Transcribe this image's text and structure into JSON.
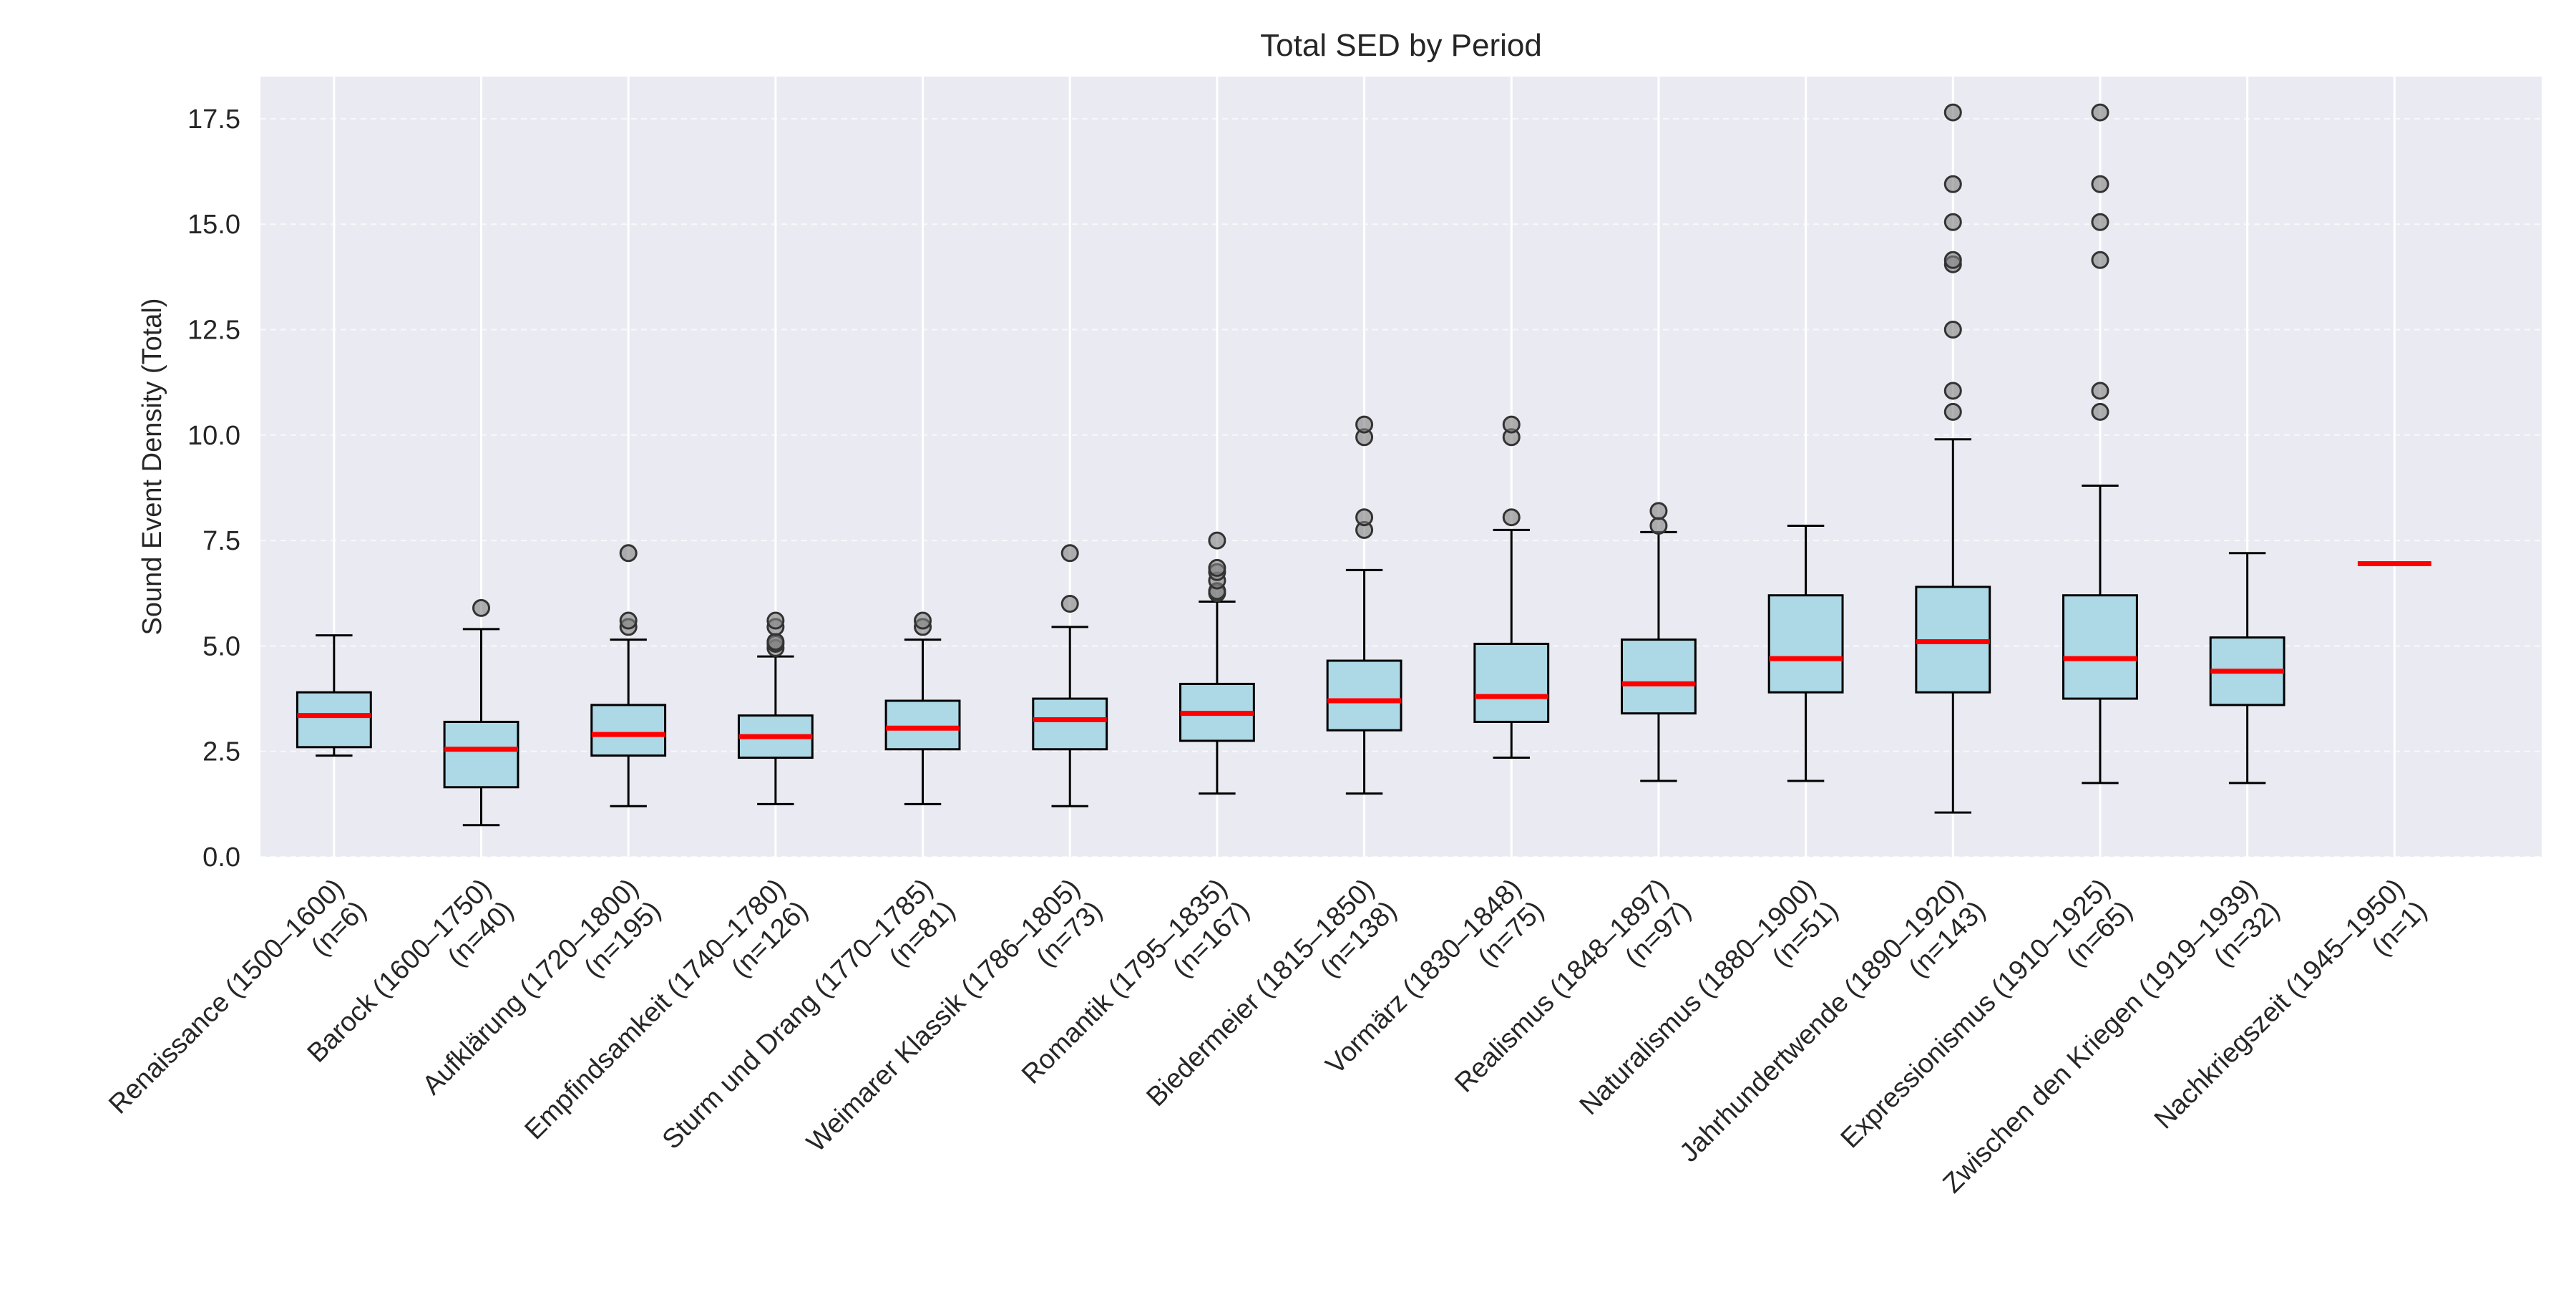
{
  "chart_data": {
    "type": "boxplot",
    "title": "Total SED by Period",
    "xlabel": "",
    "ylabel": "Sound Event Density (Total)",
    "ylim": [
      0,
      18.5
    ],
    "yticks": [
      "0.0",
      "2.5",
      "5.0",
      "7.5",
      "10.0",
      "12.5",
      "15.0",
      "17.5"
    ],
    "grid": true,
    "colors": {
      "background": "#eaeaf2",
      "grid": "#ffffff",
      "box_fill": "#add8e6",
      "box_edge": "#000000",
      "median": "#ff0000",
      "outlier_fill": "#808080"
    },
    "categories": [
      {
        "name": "Renaissance (1500–1600)",
        "n": "(n=6)",
        "q1": 2.6,
        "median": 3.35,
        "q3": 3.9,
        "whisker_low": 2.4,
        "whisker_high": 5.25,
        "outliers": []
      },
      {
        "name": "Barock (1600–1750)",
        "n": "(n=40)",
        "q1": 1.65,
        "median": 2.55,
        "q3": 3.2,
        "whisker_low": 0.75,
        "whisker_high": 5.4,
        "outliers": [
          5.9
        ]
      },
      {
        "name": "Aufklärung (1720–1800)",
        "n": "(n=195)",
        "q1": 2.4,
        "median": 2.9,
        "q3": 3.6,
        "whisker_low": 1.2,
        "whisker_high": 5.15,
        "outliers": [
          5.45,
          5.6,
          7.2
        ]
      },
      {
        "name": "Empfindsamkeit (1740–1780)",
        "n": "(n=126)",
        "q1": 2.35,
        "median": 2.85,
        "q3": 3.35,
        "whisker_low": 1.25,
        "whisker_high": 4.75,
        "outliers": [
          4.95,
          5.05,
          5.1,
          5.45,
          5.6
        ]
      },
      {
        "name": "Sturm und Drang (1770–1785)",
        "n": "(n=81)",
        "q1": 2.55,
        "median": 3.05,
        "q3": 3.7,
        "whisker_low": 1.25,
        "whisker_high": 5.15,
        "outliers": [
          5.45,
          5.6
        ]
      },
      {
        "name": "Weimarer Klassik (1786–1805)",
        "n": "(n=73)",
        "q1": 2.55,
        "median": 3.25,
        "q3": 3.75,
        "whisker_low": 1.2,
        "whisker_high": 5.45,
        "outliers": [
          6.0,
          7.2
        ]
      },
      {
        "name": "Romantik (1795–1835)",
        "n": "(n=167)",
        "q1": 2.75,
        "median": 3.4,
        "q3": 4.1,
        "whisker_low": 1.5,
        "whisker_high": 6.05,
        "outliers": [
          6.25,
          6.3,
          6.55,
          6.75,
          6.85,
          7.5
        ]
      },
      {
        "name": "Biedermeier (1815–1850)",
        "n": "(n=138)",
        "q1": 3.0,
        "median": 3.7,
        "q3": 4.65,
        "whisker_low": 1.5,
        "whisker_high": 6.8,
        "outliers": [
          7.75,
          8.05,
          9.95,
          10.25
        ]
      },
      {
        "name": "Vormärz (1830–1848)",
        "n": "(n=75)",
        "q1": 3.2,
        "median": 3.8,
        "q3": 5.05,
        "whisker_low": 2.35,
        "whisker_high": 7.75,
        "outliers": [
          8.05,
          9.95,
          10.25
        ]
      },
      {
        "name": "Realismus (1848–1897)",
        "n": "(n=97)",
        "q1": 3.4,
        "median": 4.1,
        "q3": 5.15,
        "whisker_low": 1.8,
        "whisker_high": 7.7,
        "outliers": [
          7.85,
          8.2
        ]
      },
      {
        "name": "Naturalismus (1880–1900)",
        "n": "(n=51)",
        "q1": 3.9,
        "median": 4.7,
        "q3": 6.2,
        "whisker_low": 1.8,
        "whisker_high": 7.85,
        "outliers": []
      },
      {
        "name": "Jahrhundertwende (1890–1920)",
        "n": "(n=143)",
        "q1": 3.9,
        "median": 5.1,
        "q3": 6.4,
        "whisker_low": 1.05,
        "whisker_high": 9.9,
        "outliers": [
          10.55,
          11.05,
          12.5,
          14.05,
          14.15,
          15.05,
          15.95,
          17.65
        ]
      },
      {
        "name": "Expressionismus (1910–1925)",
        "n": "(n=65)",
        "q1": 3.75,
        "median": 4.7,
        "q3": 6.2,
        "whisker_low": 1.75,
        "whisker_high": 8.8,
        "outliers": [
          10.55,
          11.05,
          14.15,
          15.05,
          15.95,
          17.65
        ]
      },
      {
        "name": "Zwischen den Kriegen (1919–1939)",
        "n": "(n=32)",
        "q1": 3.6,
        "median": 4.4,
        "q3": 5.2,
        "whisker_low": 1.75,
        "whisker_high": 7.2,
        "outliers": []
      },
      {
        "name": "Nachkriegszeit (1945–1950)",
        "n": "(n=1)",
        "q1": 6.95,
        "median": 6.95,
        "q3": 6.95,
        "whisker_low": 6.95,
        "whisker_high": 6.95,
        "outliers": []
      }
    ]
  }
}
